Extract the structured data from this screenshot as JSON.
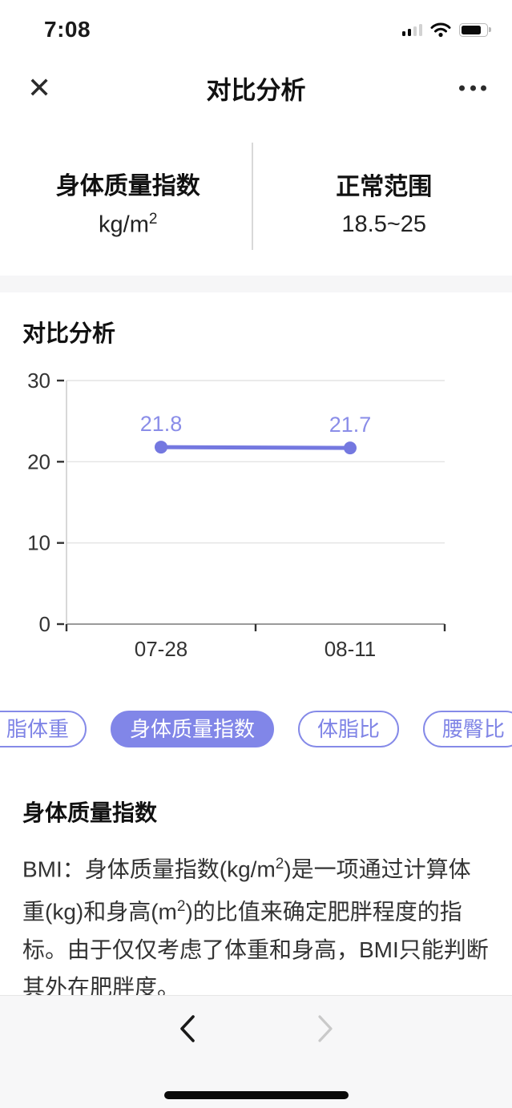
{
  "status_bar": {
    "time": "7:08"
  },
  "header": {
    "title": "对比分析"
  },
  "metric_summary": {
    "left": {
      "title": "身体质量指数",
      "unit_base": "kg/m",
      "unit_sup": "2"
    },
    "right": {
      "title": "正常范围",
      "range": "18.5~25"
    }
  },
  "section": {
    "title": "对比分析"
  },
  "chart_data": {
    "type": "line",
    "title": "对比分析",
    "categories": [
      "07-28",
      "08-11"
    ],
    "series": [
      {
        "name": "身体质量指数",
        "values": [
          21.8,
          21.7
        ]
      }
    ],
    "point_labels": [
      "21.8",
      "21.7"
    ],
    "ylim": [
      0,
      30
    ],
    "yticks": [
      0,
      10,
      20,
      30
    ],
    "grid": true,
    "legend": "none",
    "line_color": "#7478e0",
    "point_label_color": "#8a8de8",
    "axis_text_color": "#333333"
  },
  "metric_tabs": {
    "items": [
      {
        "label": "脂体重",
        "selected": false,
        "clipped_left": true
      },
      {
        "label": "身体质量指数",
        "selected": true
      },
      {
        "label": "体脂比",
        "selected": false
      },
      {
        "label": "腰臀比",
        "selected": false
      }
    ]
  },
  "description": {
    "heading": "身体质量指数",
    "body": [
      [
        "t",
        "BMI：身体质量指数(kg/m"
      ],
      [
        "sup",
        "2"
      ],
      [
        "t",
        ")是一项通过计算体重(kg)和身高(m"
      ],
      [
        "sup",
        "2"
      ],
      [
        "t",
        ")的比值来确定肥胖程度的指标。由于仅仅考虑了体重和身高，BMI只能判断其外在肥胖度。"
      ]
    ]
  },
  "colors": {
    "accent": "#8186e8",
    "accent_border": "#858ae8",
    "accent_text": "#7f84e6"
  }
}
